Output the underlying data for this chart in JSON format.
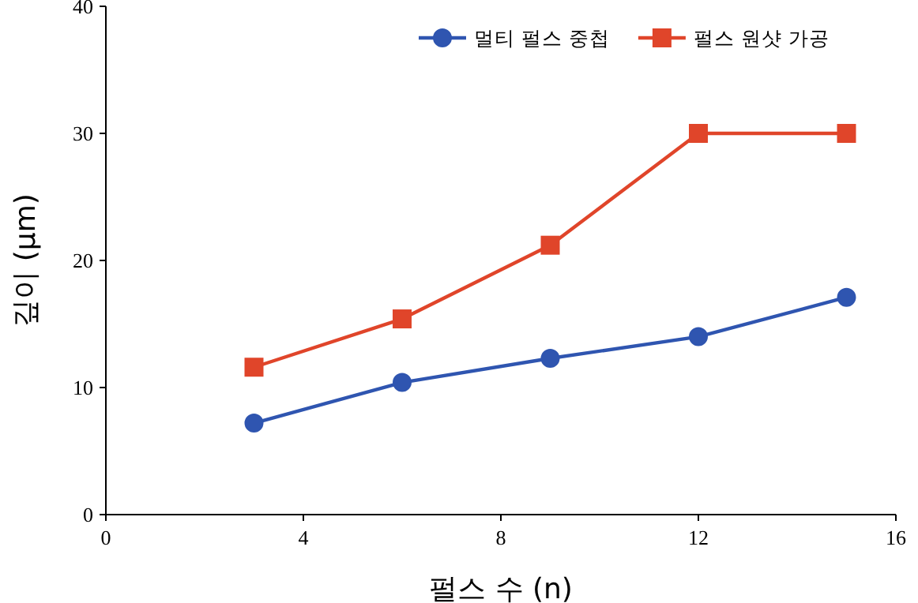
{
  "chart_data": {
    "type": "line",
    "xlabel": "펄스 수 (n)",
    "ylabel": "깊이 (µm)",
    "x": [
      3,
      6,
      9,
      12,
      15
    ],
    "series": [
      {
        "name": "멀티 펄스 중첩",
        "color": "#2f55b0",
        "marker": "circle",
        "values": [
          7.2,
          10.4,
          12.3,
          14.0,
          17.1
        ]
      },
      {
        "name": "펄스 원샷 가공",
        "color": "#e0452a",
        "marker": "square",
        "values": [
          11.6,
          15.4,
          21.2,
          30,
          30
        ]
      }
    ],
    "xlim": [
      0,
      16
    ],
    "xticks": [
      0,
      4,
      8,
      12,
      16
    ],
    "ylim": [
      0,
      40
    ],
    "yticks": [
      0,
      10,
      20,
      30,
      40
    ],
    "grid": false,
    "legend": "top right"
  }
}
